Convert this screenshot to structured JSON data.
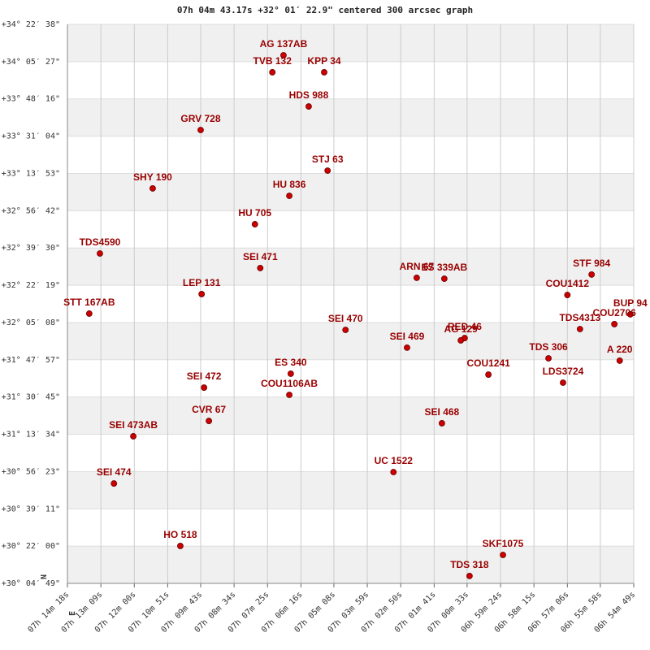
{
  "chart_data": {
    "type": "scatter",
    "title": "07h 04m 43.17s +32° 01′ 22.9\" centered 300 arcsec graph",
    "north_label": "N",
    "east_label": "E",
    "color": "#cc0000",
    "label_color": "#990000",
    "labels": [
      "AG 137AB",
      "TVB 132",
      "KPP 34",
      "HDS 988",
      "GRV 728",
      "STJ 63",
      "SHY 190",
      "HU 836",
      "HU 705",
      "TDS4590",
      "SEI 471",
      "ARN 67",
      "ES 339AB",
      "STF 984",
      "LEP 131",
      "COU1412",
      "STT 167AB",
      "BUP 94",
      "COU2706",
      "SEI 470",
      "TDS4313",
      "RED 46",
      "AG 129",
      "SEI 469",
      "TDS 306",
      "A 220",
      "ES 340",
      "COU1241",
      "SEI 472",
      "LDS3724",
      "COU1106AB",
      "CVR 67",
      "SEI 468",
      "SEI 473AB",
      "UC 1522",
      "SEI 474",
      "HO 518",
      "SKF1075",
      "TDS 318"
    ],
    "x": [
      25612,
      25635,
      25528,
      25560,
      25783,
      25521,
      25882,
      25600,
      25671,
      25991,
      25660,
      25337,
      25280,
      24976,
      25781,
      25026,
      26013,
      24896,
      24929,
      25484,
      25000,
      25238,
      25246,
      25357,
      25065,
      24918,
      25597,
      25189,
      25776,
      25035,
      25600,
      25766,
      25285,
      25922,
      25385,
      25962,
      25825,
      25159,
      25228
    ],
    "values": [
      34.14,
      34.009,
      34.009,
      33.746,
      33.565,
      33.253,
      33.116,
      33.059,
      32.841,
      32.616,
      32.504,
      32.429,
      32.422,
      32.454,
      32.304,
      32.297,
      32.154,
      32.148,
      32.073,
      32.029,
      32.035,
      31.966,
      31.948,
      31.892,
      31.81,
      31.792,
      31.692,
      31.685,
      31.585,
      31.623,
      31.529,
      31.329,
      31.311,
      31.211,
      30.936,
      30.848,
      30.368,
      30.299,
      30.137
    ],
    "xlim": [
      26058,
      24889
    ],
    "xticks": [
      {
        "value": 26058,
        "label": "07h 14m 18s"
      },
      {
        "value": 25989,
        "label": "07h 13m 09s"
      },
      {
        "value": 25920,
        "label": "07h 12m 00s"
      },
      {
        "value": 25851,
        "label": "07h 10m 51s"
      },
      {
        "value": 25783,
        "label": "07h 09m 43s"
      },
      {
        "value": 25714,
        "label": "07h 08m 34s"
      },
      {
        "value": 25645,
        "label": "07h 07m 25s"
      },
      {
        "value": 25576,
        "label": "07h 06m 16s"
      },
      {
        "value": 25508,
        "label": "07h 05m 08s"
      },
      {
        "value": 25439,
        "label": "07h 03m 59s"
      },
      {
        "value": 25370,
        "label": "07h 02m 50s"
      },
      {
        "value": 25301,
        "label": "07h 01m 41s"
      },
      {
        "value": 25233,
        "label": "07h 00m 33s"
      },
      {
        "value": 25164,
        "label": "06h 59m 24s"
      },
      {
        "value": 25095,
        "label": "06h 58m 15s"
      },
      {
        "value": 25026,
        "label": "06h 57m 06s"
      },
      {
        "value": 24958,
        "label": "06h 55m 58s"
      },
      {
        "value": 24889,
        "label": "06h 54m 49s"
      }
    ],
    "ylim": [
      30.0803,
      34.3771
    ],
    "yticks": [
      {
        "value": 30.0803,
        "label": "+30° 04′ 49\""
      },
      {
        "value": 30.3667,
        "label": "+30° 22′ 00\""
      },
      {
        "value": 30.6532,
        "label": "+30° 39′ 11\""
      },
      {
        "value": 30.9396,
        "label": "+30° 56′ 23\""
      },
      {
        "value": 31.2261,
        "label": "+31° 13′ 34\""
      },
      {
        "value": 31.5125,
        "label": "+31° 30′ 45\""
      },
      {
        "value": 31.799,
        "label": "+31° 47′ 57\""
      },
      {
        "value": 32.0854,
        "label": "+32° 05′ 08\""
      },
      {
        "value": 32.3719,
        "label": "+32° 22′ 19\""
      },
      {
        "value": 32.6583,
        "label": "+32° 39′ 30\""
      },
      {
        "value": 32.9448,
        "label": "+32° 56′ 42\""
      },
      {
        "value": 33.2313,
        "label": "+33° 13′ 53\""
      },
      {
        "value": 33.5177,
        "label": "+33° 31′ 04\""
      },
      {
        "value": 33.8042,
        "label": "+33° 48′ 16\""
      },
      {
        "value": 34.0906,
        "label": "+34° 05′ 27\""
      },
      {
        "value": 34.3771,
        "label": "+34° 22′ 38\""
      }
    ],
    "grid": true
  }
}
